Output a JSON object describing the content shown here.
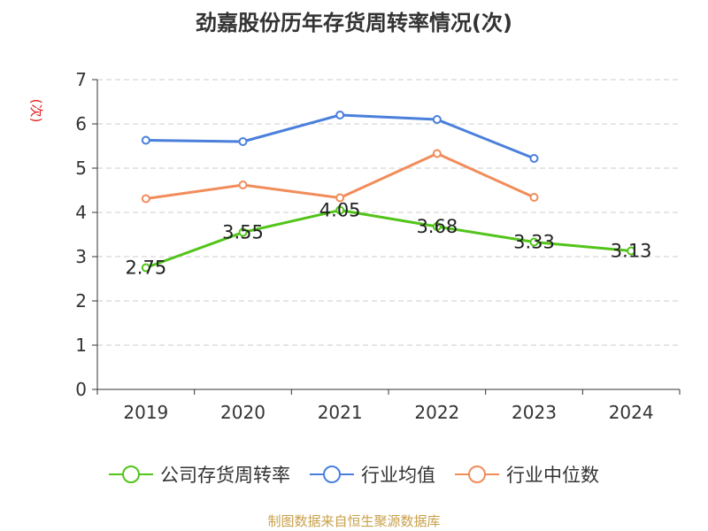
{
  "chart_data": {
    "type": "line",
    "title": "劲嘉股份历年存货周转率情况(次)",
    "ylabel": "(次)",
    "xlabel": "",
    "categories": [
      "2019",
      "2020",
      "2021",
      "2022",
      "2023",
      "2024"
    ],
    "ylim": [
      0,
      7
    ],
    "yticks": [
      "0",
      "1",
      "2",
      "3",
      "4",
      "5",
      "6",
      "7"
    ],
    "grid": true,
    "legend_position": "bottom",
    "series": [
      {
        "name": "公司存货周转率",
        "color": "#52c41a",
        "values": [
          2.75,
          3.55,
          4.05,
          3.68,
          3.33,
          3.13
        ],
        "labels": [
          "2.75",
          "3.55",
          "4.05",
          "3.68",
          "3.33",
          "3.13"
        ]
      },
      {
        "name": "行业均值",
        "color": "#4a7fdc",
        "values": [
          5.63,
          5.6,
          6.2,
          6.1,
          5.22,
          null
        ]
      },
      {
        "name": "行业中位数",
        "color": "#f28c5a",
        "values": [
          4.31,
          4.62,
          4.33,
          5.33,
          4.34,
          null
        ]
      }
    ]
  },
  "source": "制图数据来自恒生聚源数据库"
}
